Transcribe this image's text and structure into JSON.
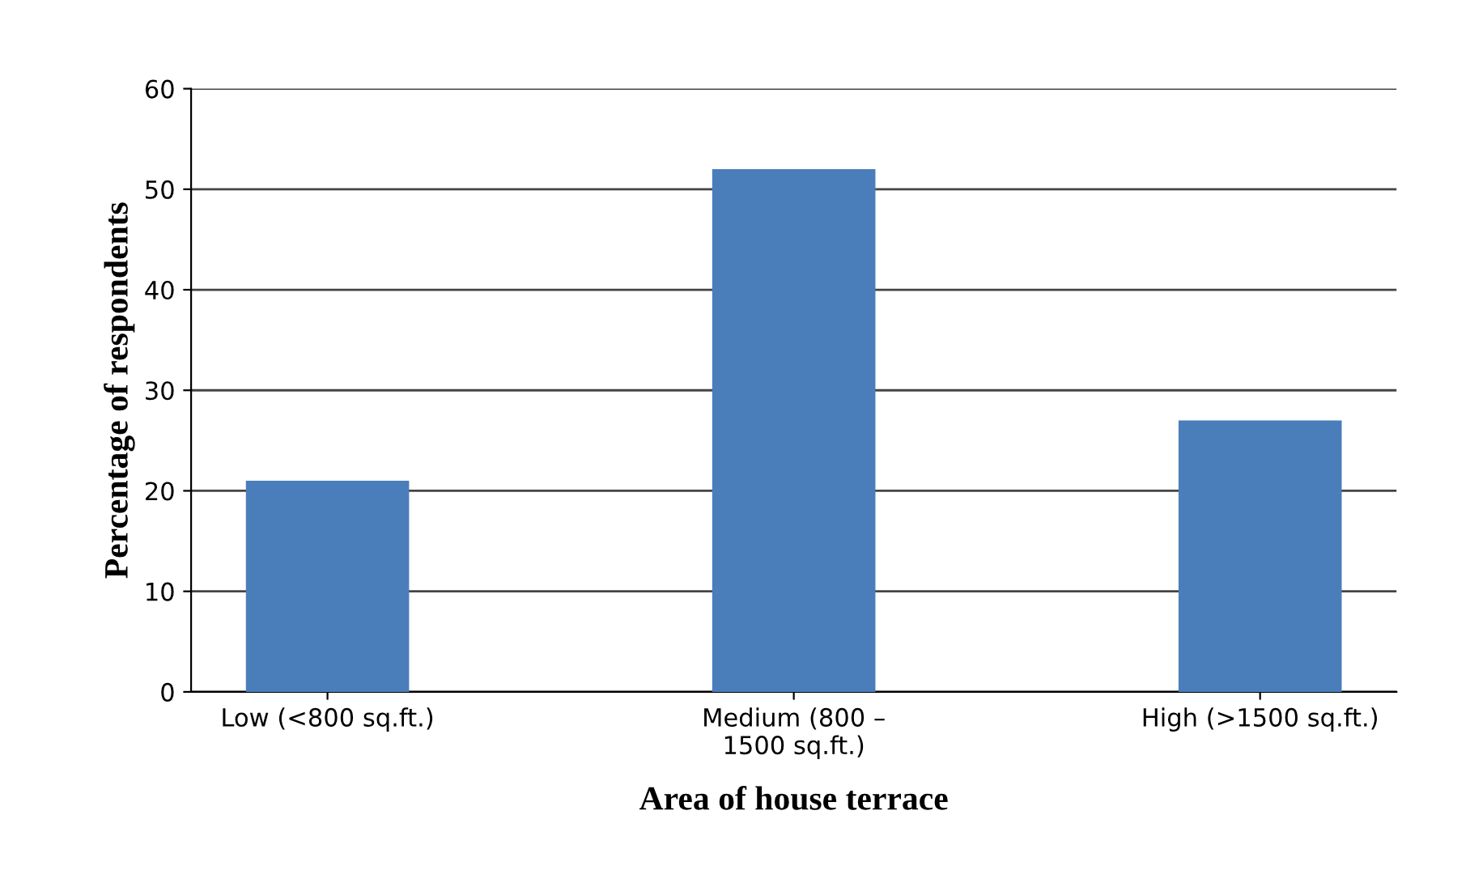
{
  "chart_data": {
    "type": "bar",
    "xlabel": "Area of house terrace",
    "ylabel": "Percentage of respondents",
    "categories": [
      "Low (<800 sq.ft.)",
      "Medium (800 –\n1500 sq.ft.)",
      "High (>1500 sq.ft.)"
    ],
    "values": [
      21,
      52,
      27
    ],
    "color": "#4a7ebb",
    "ylim": [
      0,
      60
    ],
    "yticks": [
      0,
      10,
      20,
      30,
      40,
      50,
      60
    ],
    "grid": "y"
  }
}
